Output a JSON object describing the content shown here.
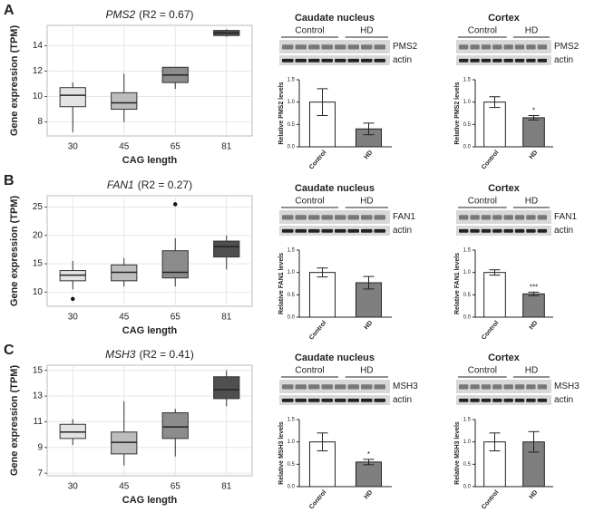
{
  "panel_labels": [
    "A",
    "B",
    "C"
  ],
  "blots": [
    {
      "groups": [
        "Control",
        "HD"
      ],
      "bands": [
        "PMS2",
        "actin"
      ]
    },
    {
      "groups": [
        "Control",
        "HD"
      ],
      "bands": [
        "PMS2",
        "actin"
      ]
    },
    {
      "groups": [
        "Control",
        "HD"
      ],
      "bands": [
        "FAN1",
        "actin"
      ]
    },
    {
      "groups": [
        "Control",
        "HD"
      ],
      "bands": [
        "FAN1",
        "actin"
      ]
    },
    {
      "groups": [
        "Control",
        "HD"
      ],
      "bands": [
        "MSH3",
        "actin"
      ]
    },
    {
      "groups": [
        "Control",
        "HD"
      ],
      "bands": [
        "MSH3",
        "actin"
      ]
    }
  ],
  "chart_data": [
    {
      "type": "box",
      "title": {
        "gene": "PMS2",
        "stat": "(R2 = 0.67)"
      },
      "x_label": "CAG length",
      "y_label": "Gene expression (TPM)",
      "categories": [
        "30",
        "45",
        "65",
        "81"
      ],
      "colors": [
        "#e3e3e3",
        "#bdbdbd",
        "#8c8c8c",
        "#4f4f4f"
      ],
      "whislo": [
        7.2,
        8.0,
        10.6,
        14.7
      ],
      "q1": [
        9.2,
        9.0,
        11.1,
        14.8
      ],
      "median": [
        10.1,
        9.5,
        11.7,
        15.0
      ],
      "q3": [
        10.7,
        10.3,
        12.3,
        15.2
      ],
      "whishi": [
        11.1,
        11.8,
        12.3,
        15.3
      ],
      "outliers": [
        [],
        [],
        [],
        []
      ],
      "ylim": [
        6.9,
        15.6
      ],
      "yticks": [
        8,
        10,
        12,
        14
      ],
      "grid": true
    },
    {
      "type": "bar",
      "title": "Caudate nucleus",
      "y_label": "Relative PMS2 levels",
      "categories": [
        "Control",
        "HD"
      ],
      "values": [
        1.0,
        0.4
      ],
      "errors": [
        0.3,
        0.13
      ],
      "colors": [
        "#ffffff",
        "#7f7f7f"
      ],
      "annotations": [],
      "ylim": [
        0,
        1.5
      ],
      "yticks": [
        {
          "value": 0,
          "label": "0.0"
        },
        {
          "value": 0.5,
          "label": "0.5"
        },
        {
          "value": 1,
          "label": "1.0"
        },
        {
          "value": 1.5,
          "label": "1.5"
        }
      ]
    },
    {
      "type": "bar",
      "title": "Cortex",
      "y_label": "Relative PMS2 levels",
      "categories": [
        "Control",
        "HD"
      ],
      "values": [
        1.0,
        0.65
      ],
      "errors": [
        0.12,
        0.05
      ],
      "colors": [
        "#ffffff",
        "#7f7f7f"
      ],
      "annotations": [
        {
          "category": "HD",
          "text": "*"
        }
      ],
      "ylim": [
        0,
        1.5
      ],
      "yticks": [
        {
          "value": 0,
          "label": "0.0"
        },
        {
          "value": 0.5,
          "label": "0.5"
        },
        {
          "value": 1,
          "label": "1.0"
        },
        {
          "value": 1.5,
          "label": "1.5"
        }
      ]
    },
    {
      "type": "box",
      "title": {
        "gene": "FAN1",
        "stat": "(R2 = 0.27)"
      },
      "x_label": "CAG length",
      "y_label": "Gene expression (TPM)",
      "categories": [
        "30",
        "45",
        "65",
        "81"
      ],
      "colors": [
        "#e3e3e3",
        "#bdbdbd",
        "#8c8c8c",
        "#4f4f4f"
      ],
      "whislo": [
        10.5,
        11,
        11,
        14
      ],
      "q1": [
        12,
        12,
        12.5,
        16.2
      ],
      "median": [
        13,
        13.5,
        13.5,
        18
      ],
      "q3": [
        13.8,
        14.8,
        17.3,
        19
      ],
      "whishi": [
        15.5,
        16,
        19.5,
        20
      ],
      "outliers": [
        [
          8.8
        ],
        [],
        [
          25.5
        ],
        []
      ],
      "ylim": [
        7.5,
        27
      ],
      "yticks": [
        10,
        15,
        20,
        25
      ],
      "grid": true
    },
    {
      "type": "bar",
      "title": "Caudate nucleus",
      "y_label": "Relative FAN1 levels",
      "categories": [
        "Control",
        "HD"
      ],
      "values": [
        1.0,
        0.77
      ],
      "errors": [
        0.1,
        0.14
      ],
      "colors": [
        "#ffffff",
        "#7f7f7f"
      ],
      "annotations": [],
      "ylim": [
        0,
        1.5
      ],
      "yticks": [
        {
          "value": 0,
          "label": "0.0"
        },
        {
          "value": 0.5,
          "label": "0.5"
        },
        {
          "value": 1,
          "label": "1.0"
        },
        {
          "value": 1.5,
          "label": "1.5"
        }
      ]
    },
    {
      "type": "bar",
      "title": "Cortex",
      "y_label": "Relative FAN1 levels",
      "categories": [
        "Control",
        "HD"
      ],
      "values": [
        1.0,
        0.52
      ],
      "errors": [
        0.06,
        0.04
      ],
      "colors": [
        "#ffffff",
        "#7f7f7f"
      ],
      "annotations": [
        {
          "category": "HD",
          "text": "***"
        }
      ],
      "ylim": [
        0,
        1.5
      ],
      "yticks": [
        {
          "value": 0,
          "label": "0.0"
        },
        {
          "value": 0.5,
          "label": "0.5"
        },
        {
          "value": 1,
          "label": "1.0"
        },
        {
          "value": 1.5,
          "label": "1.5"
        }
      ]
    },
    {
      "type": "box",
      "title": {
        "gene": "MSH3",
        "stat": "(R2 = 0.41)"
      },
      "x_label": "CAG length",
      "y_label": "Gene expression (TPM)",
      "categories": [
        "30",
        "45",
        "65",
        "81"
      ],
      "colors": [
        "#e3e3e3",
        "#bdbdbd",
        "#8c8c8c",
        "#4f4f4f"
      ],
      "whislo": [
        9.2,
        7.6,
        8.3,
        12.2
      ],
      "q1": [
        9.7,
        8.5,
        9.7,
        12.8
      ],
      "median": [
        10.2,
        9.4,
        10.6,
        13.5
      ],
      "q3": [
        10.8,
        10.2,
        11.7,
        14.5
      ],
      "whishi": [
        11.2,
        12.6,
        12,
        15
      ],
      "outliers": [
        [],
        [],
        [],
        []
      ],
      "ylim": [
        6.8,
        15.4
      ],
      "yticks": [
        7,
        9,
        11,
        13,
        15
      ],
      "grid": true
    },
    {
      "type": "bar",
      "title": "Caudate nucleus",
      "y_label": "Relative MSH3 levels",
      "categories": [
        "Control",
        "HD"
      ],
      "values": [
        1.0,
        0.55
      ],
      "errors": [
        0.2,
        0.06
      ],
      "colors": [
        "#ffffff",
        "#7f7f7f"
      ],
      "annotations": [
        {
          "category": "HD",
          "text": "*"
        }
      ],
      "ylim": [
        0,
        1.5
      ],
      "yticks": [
        {
          "value": 0,
          "label": "0.0"
        },
        {
          "value": 0.5,
          "label": "0.5"
        },
        {
          "value": 1,
          "label": "1.0"
        },
        {
          "value": 1.5,
          "label": "1.5"
        }
      ]
    },
    {
      "type": "bar",
      "title": "Cortex",
      "y_label": "Relative MSH3 levels",
      "categories": [
        "Control",
        "HD"
      ],
      "values": [
        1.0,
        1.0
      ],
      "errors": [
        0.2,
        0.23
      ],
      "colors": [
        "#ffffff",
        "#7f7f7f"
      ],
      "annotations": [],
      "ylim": [
        0,
        1.5
      ],
      "yticks": [
        {
          "value": 0,
          "label": "0.0"
        },
        {
          "value": 0.5,
          "label": "0.5"
        },
        {
          "value": 1,
          "label": "1.0"
        },
        {
          "value": 1.5,
          "label": "1.5"
        }
      ]
    }
  ]
}
